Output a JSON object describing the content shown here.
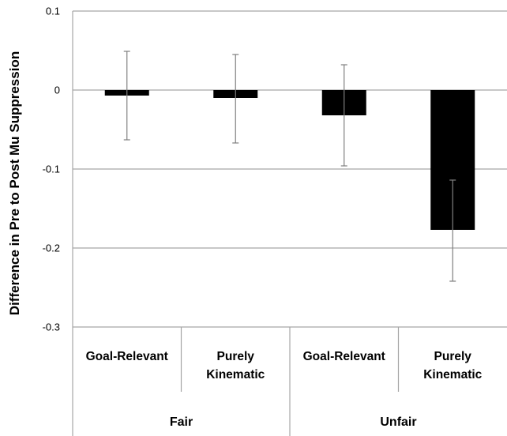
{
  "chart_data": {
    "type": "bar",
    "title": "",
    "xlabel": "",
    "ylabel": "Difference in Pre to Post Mu Suppression",
    "ylim": [
      -0.3,
      0.1
    ],
    "y_ticks": [
      "0.1",
      "0",
      "-0.1",
      "-0.2",
      "-0.3"
    ],
    "grid": true,
    "categories": [
      {
        "lines": [
          "Goal-Relevant"
        ]
      },
      {
        "lines": [
          "Purely",
          "Kinematic"
        ]
      },
      {
        "lines": [
          "Goal-Relevant"
        ]
      },
      {
        "lines": [
          "Purely",
          "Kinematic"
        ]
      }
    ],
    "groups": [
      {
        "label": "Fair",
        "span": [
          0,
          1
        ]
      },
      {
        "label": "Unfair",
        "span": [
          2,
          3
        ]
      }
    ],
    "values": [
      -0.007,
      -0.01,
      -0.032,
      -0.177
    ],
    "error_bars": [
      {
        "low": -0.063,
        "high": 0.049
      },
      {
        "low": -0.067,
        "high": 0.045
      },
      {
        "low": -0.096,
        "high": 0.032
      },
      {
        "low": -0.242,
        "high": -0.114
      }
    ],
    "colors": {
      "bar": "#000000",
      "grid": "#a6a6a6",
      "error": "#7f7f7f"
    }
  }
}
